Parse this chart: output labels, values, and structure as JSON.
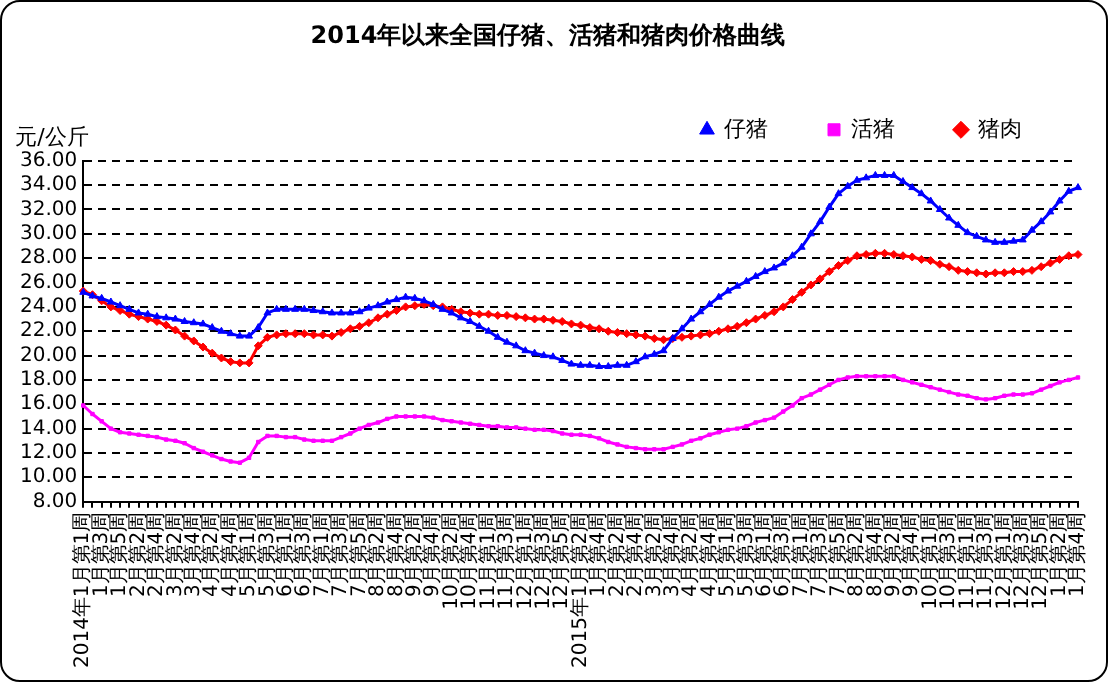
{
  "chart_data": {
    "type": "line",
    "title": "2014年以来全国仔猪、活猪和猪肉价格曲线",
    "ylabel": "元/公斤",
    "categories": [
      "2014年1月第1周",
      null,
      "1月第3周",
      null,
      "1月第5周",
      null,
      "2月第2周",
      null,
      "2月第4周",
      null,
      "3月第2周",
      null,
      "3月第4周",
      null,
      "4月第2周",
      null,
      "4月第4周",
      null,
      "5月第1周",
      null,
      "5月第3周",
      null,
      "6月第1周",
      null,
      "6月第3周",
      null,
      "7月第1周",
      null,
      "7月第3周",
      null,
      "7月第5周",
      null,
      "8月第2周",
      null,
      "8月第4周",
      null,
      "9月第2周",
      null,
      "9月第4周",
      null,
      "10月第2周",
      null,
      "10月第4周",
      null,
      "11月第1周",
      null,
      "11月第3周",
      null,
      "12月第1周",
      null,
      "12月第3周",
      null,
      "12月第5周",
      null,
      "2015年1月第2周",
      null,
      "1月第4周",
      null,
      "2月第2周",
      null,
      "2月第4周",
      null,
      "3月第2周",
      null,
      "3月第4周",
      null,
      "4月第2周",
      null,
      "4月第4周",
      null,
      "5月第1周",
      null,
      "5月第3周",
      null,
      "6月第1周",
      null,
      "6月第3周",
      null,
      "7月第1周",
      null,
      "7月第3周",
      null,
      "7月第5周",
      null,
      "8月第2周",
      null,
      "8月第4周",
      null,
      "9月第2周",
      null,
      "9月第4周",
      null,
      "10月第1周",
      null,
      "10月第3周",
      null,
      "11月第1周",
      null,
      "11月第3周",
      null,
      "12月第1周",
      null,
      "12月第3周",
      null,
      "12月第5周",
      null,
      "1月第2周",
      null,
      "1月第4周"
    ],
    "series": [
      {
        "name": "仔猪",
        "color": "#0000ff",
        "marker": "triangle",
        "values": [
          25.2,
          24.9,
          24.7,
          24.4,
          24.1,
          23.8,
          23.5,
          23.4,
          23.2,
          23.1,
          23.0,
          22.8,
          22.7,
          22.6,
          22.3,
          22.0,
          21.8,
          21.6,
          21.6,
          22.3,
          23.5,
          23.8,
          23.8,
          23.8,
          23.8,
          23.7,
          23.6,
          23.5,
          23.5,
          23.5,
          23.6,
          23.9,
          24.1,
          24.4,
          24.6,
          24.8,
          24.7,
          24.5,
          24.2,
          23.8,
          23.5,
          23.1,
          22.8,
          22.4,
          22.0,
          21.5,
          21.1,
          20.8,
          20.4,
          20.2,
          20.0,
          19.9,
          19.6,
          19.3,
          19.2,
          19.2,
          19.1,
          19.1,
          19.2,
          19.2,
          19.5,
          19.9,
          20.1,
          20.4,
          21.4,
          22.2,
          23.0,
          23.6,
          24.2,
          24.8,
          25.3,
          25.7,
          26.1,
          26.5,
          26.9,
          27.2,
          27.6,
          28.2,
          28.9,
          30.0,
          31.0,
          32.2,
          33.3,
          33.9,
          34.4,
          34.6,
          34.8,
          34.8,
          34.8,
          34.3,
          33.8,
          33.3,
          32.7,
          32.0,
          31.3,
          30.7,
          30.1,
          29.8,
          29.5,
          29.3,
          29.3,
          29.4,
          29.5,
          30.3,
          31.0,
          31.8,
          32.7,
          33.5,
          33.8
        ]
      },
      {
        "name": "活猪",
        "color": "#ff00ff",
        "marker": "square",
        "values": [
          15.9,
          15.2,
          14.6,
          14.0,
          13.7,
          13.6,
          13.5,
          13.4,
          13.3,
          13.1,
          13.0,
          12.8,
          12.4,
          12.1,
          11.8,
          11.5,
          11.3,
          11.2,
          11.6,
          12.9,
          13.4,
          13.4,
          13.3,
          13.3,
          13.1,
          13.0,
          13.0,
          13.0,
          13.3,
          13.6,
          14.0,
          14.3,
          14.5,
          14.8,
          15.0,
          15.0,
          15.0,
          15.0,
          14.9,
          14.7,
          14.6,
          14.5,
          14.4,
          14.3,
          14.2,
          14.2,
          14.1,
          14.1,
          14.0,
          13.9,
          13.9,
          13.8,
          13.6,
          13.5,
          13.5,
          13.4,
          13.2,
          12.9,
          12.7,
          12.5,
          12.4,
          12.3,
          12.3,
          12.3,
          12.5,
          12.7,
          13.0,
          13.2,
          13.5,
          13.7,
          13.9,
          14.0,
          14.2,
          14.5,
          14.7,
          14.9,
          15.4,
          15.9,
          16.5,
          16.8,
          17.2,
          17.6,
          18.0,
          18.2,
          18.3,
          18.3,
          18.3,
          18.3,
          18.3,
          18.0,
          17.8,
          17.6,
          17.4,
          17.2,
          17.0,
          16.8,
          16.7,
          16.5,
          16.4,
          16.5,
          16.7,
          16.8,
          16.8,
          16.9,
          17.2,
          17.5,
          17.8,
          18.0,
          18.2
        ]
      },
      {
        "name": "猪肉",
        "color": "#ff0000",
        "marker": "diamond",
        "values": [
          25.3,
          25.0,
          24.5,
          24.0,
          23.7,
          23.4,
          23.2,
          23.0,
          22.8,
          22.5,
          22.1,
          21.6,
          21.2,
          20.7,
          20.2,
          19.8,
          19.5,
          19.4,
          19.4,
          20.8,
          21.5,
          21.7,
          21.8,
          21.8,
          21.8,
          21.7,
          21.7,
          21.6,
          21.9,
          22.2,
          22.4,
          22.7,
          23.1,
          23.4,
          23.7,
          24.0,
          24.1,
          24.2,
          24.1,
          24.0,
          23.8,
          23.6,
          23.5,
          23.4,
          23.4,
          23.3,
          23.3,
          23.2,
          23.1,
          23.0,
          23.0,
          22.9,
          22.8,
          22.6,
          22.5,
          22.3,
          22.2,
          22.0,
          21.9,
          21.8,
          21.7,
          21.6,
          21.4,
          21.3,
          21.4,
          21.5,
          21.6,
          21.7,
          21.8,
          22.0,
          22.2,
          22.4,
          22.7,
          23.0,
          23.3,
          23.6,
          24.0,
          24.6,
          25.2,
          25.8,
          26.3,
          26.9,
          27.4,
          27.8,
          28.2,
          28.3,
          28.4,
          28.4,
          28.3,
          28.2,
          28.1,
          27.9,
          27.8,
          27.5,
          27.3,
          27.0,
          26.9,
          26.8,
          26.7,
          26.8,
          26.8,
          26.9,
          26.9,
          27.0,
          27.3,
          27.6,
          27.9,
          28.2,
          28.3
        ]
      }
    ],
    "ylim": [
      8,
      36
    ],
    "yticks": [
      {
        "value": 8,
        "label": "8.00"
      },
      {
        "value": 10,
        "label": "10.00"
      },
      {
        "value": 12,
        "label": "12.00"
      },
      {
        "value": 14,
        "label": "14.00"
      },
      {
        "value": 16,
        "label": "16.00"
      },
      {
        "value": 18,
        "label": "18.00"
      },
      {
        "value": 20,
        "label": "20.00"
      },
      {
        "value": 22,
        "label": "22.00"
      },
      {
        "value": 24,
        "label": "24.00"
      },
      {
        "value": 26,
        "label": "26.00"
      },
      {
        "value": 28,
        "label": "28.00"
      },
      {
        "value": 30,
        "label": "30.00"
      },
      {
        "value": 32,
        "label": "32.00"
      },
      {
        "value": 34,
        "label": "34.00"
      },
      {
        "value": 36,
        "label": "36.00"
      }
    ],
    "grid": "y",
    "legend": "top right",
    "line_style": "solid"
  }
}
